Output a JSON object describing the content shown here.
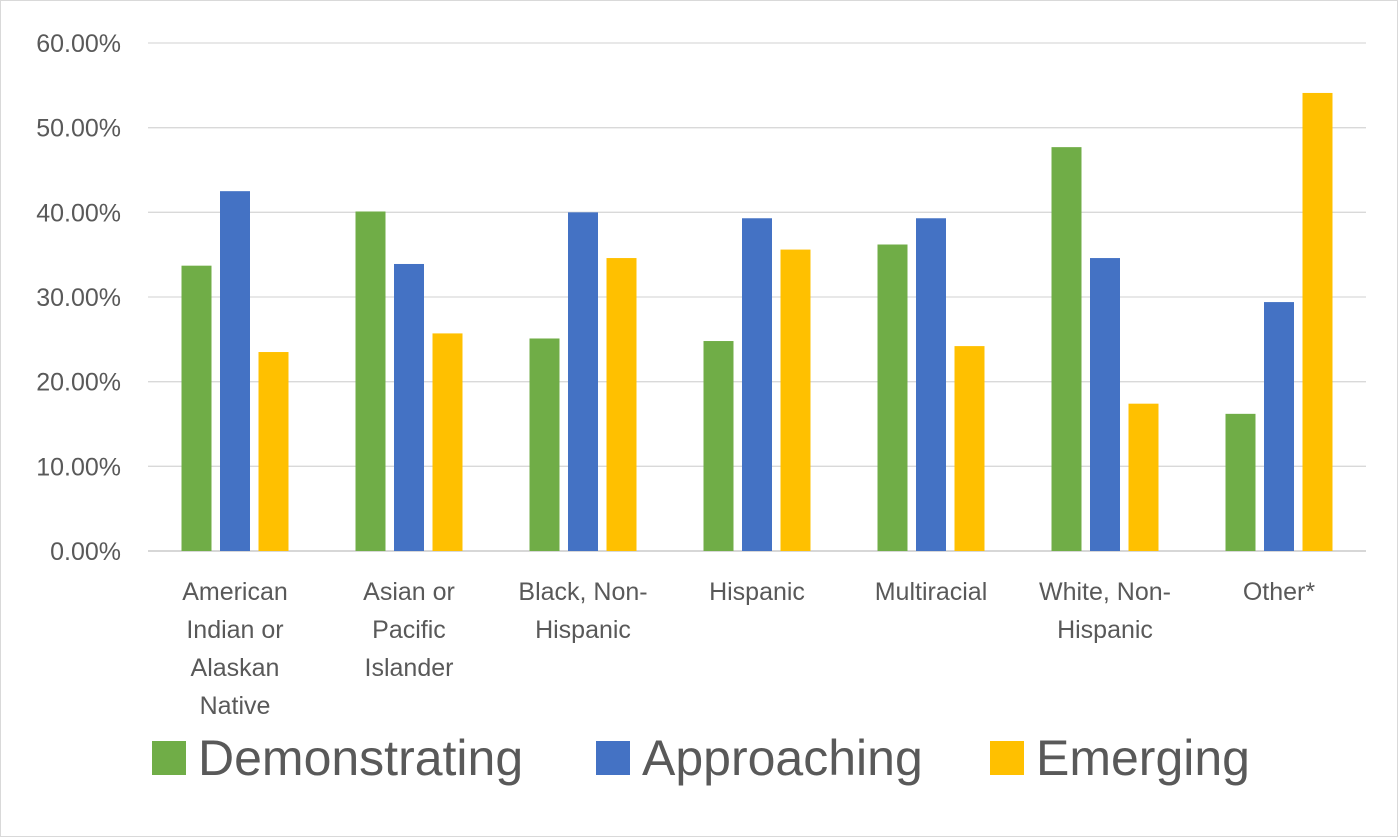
{
  "chart_data": {
    "type": "bar",
    "categories": [
      [
        "American",
        "Indian or",
        "Alaskan",
        "Native"
      ],
      [
        "Asian or",
        "Pacific",
        "Islander"
      ],
      [
        "Black, Non-",
        "Hispanic"
      ],
      [
        "Hispanic"
      ],
      [
        "Multiracial"
      ],
      [
        "White, Non-",
        "Hispanic"
      ],
      [
        "Other*"
      ]
    ],
    "series": [
      {
        "name": "Demonstrating",
        "color": "#70ad47",
        "values": [
          33.7,
          40.1,
          25.1,
          24.8,
          36.2,
          47.7,
          16.2
        ]
      },
      {
        "name": "Approaching",
        "color": "#4472c4",
        "values": [
          42.5,
          33.9,
          40.0,
          39.3,
          39.3,
          34.6,
          29.4
        ]
      },
      {
        "name": "Emerging",
        "color": "#ffc000",
        "values": [
          23.5,
          25.7,
          34.6,
          35.6,
          24.2,
          17.4,
          54.1
        ]
      }
    ],
    "y_ticks": [
      "0.00%",
      "10.00%",
      "20.00%",
      "30.00%",
      "40.00%",
      "50.00%",
      "60.00%"
    ],
    "ylim": [
      0,
      60
    ],
    "grid": true,
    "legend_position": "bottom"
  }
}
